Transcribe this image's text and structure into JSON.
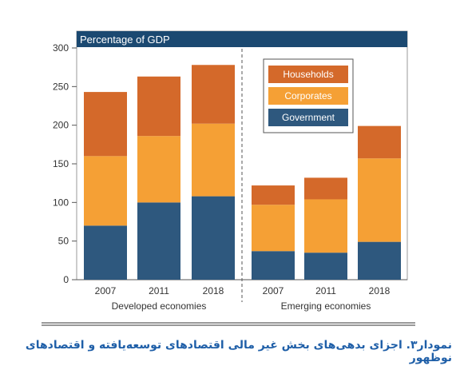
{
  "chart_data": {
    "type": "bar",
    "stacked": true,
    "title": "Percentage of GDP",
    "ylim": [
      0,
      300
    ],
    "yticks": [
      "0",
      "50",
      "100",
      "150",
      "200",
      "250",
      "300"
    ],
    "groups": [
      {
        "name": "Developed economies",
        "categories": [
          "2007",
          "2011",
          "2018"
        ]
      },
      {
        "name": "Emerging economies",
        "categories": [
          "2007",
          "2011",
          "2018"
        ]
      }
    ],
    "categories": [
      "2007",
      "2011",
      "2018",
      "2007",
      "2011",
      "2018"
    ],
    "series": [
      {
        "name": "Government",
        "color": "#2e587e",
        "values": [
          70,
          100,
          108,
          37,
          35,
          49
        ]
      },
      {
        "name": "Corporates",
        "color": "#f5a035",
        "values": [
          90,
          86,
          94,
          60,
          69,
          108
        ]
      },
      {
        "name": "Households",
        "color": "#d4692a",
        "values": [
          83,
          77,
          76,
          25,
          28,
          42
        ]
      }
    ],
    "legend": {
      "position": "top-right",
      "order": [
        "Households",
        "Corporates",
        "Government"
      ]
    },
    "title_bar_color": "#1b4971",
    "grid": false
  },
  "caption": "نمودار۳. اجزای بدهی‌های بخش غیر مالی اقتصادهای توسعه‌یافته و اقتصادهای نوظهور"
}
